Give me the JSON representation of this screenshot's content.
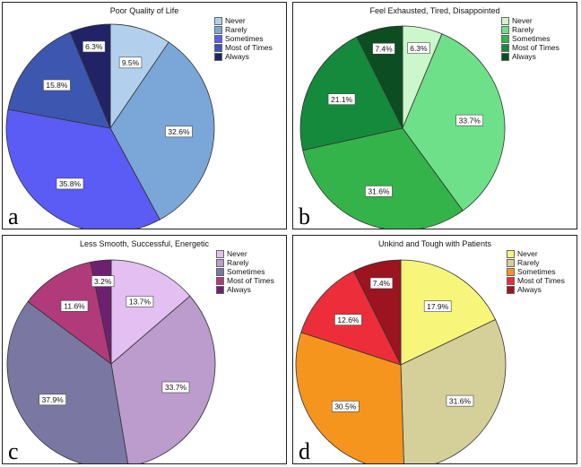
{
  "chart_data": [
    {
      "type": "pie",
      "title": "Poor Quality of Life",
      "panel_letter": "a",
      "categories": [
        "Never",
        "Rarely",
        "Sometimes",
        "Most of Times",
        "Always"
      ],
      "values": [
        9.5,
        32.6,
        35.8,
        15.8,
        6.3
      ],
      "labels": [
        "9.5%",
        "32.6%",
        "35.8%",
        "15.8%",
        "6.3%"
      ],
      "colors": [
        "#b3cfee",
        "#7ba7d8",
        "#5b5bf5",
        "#3d56b0",
        "#222266"
      ],
      "legend_position": "top-right"
    },
    {
      "type": "pie",
      "title": "Feel Exhausted, Tired, Disappointed",
      "panel_letter": "b",
      "categories": [
        "Never",
        "Rarely",
        "Sometimes",
        "Most of Times",
        "Always"
      ],
      "values": [
        6.3,
        33.7,
        31.6,
        21.1,
        7.4
      ],
      "labels": [
        "6.3%",
        "33.7%",
        "31.6%",
        "21.1%",
        "7.4%"
      ],
      "colors": [
        "#ccf7cc",
        "#6ee08a",
        "#33b34a",
        "#158a3c",
        "#0d4d22"
      ],
      "legend_position": "top-right"
    },
    {
      "type": "pie",
      "title": "Less Smooth, Successful, Energetic",
      "panel_letter": "c",
      "categories": [
        "Never",
        "Rarely",
        "Sometimes",
        "Most of Times",
        "Always"
      ],
      "values": [
        13.7,
        33.7,
        37.9,
        11.6,
        3.2
      ],
      "labels": [
        "13.7%",
        "33.7%",
        "37.9%",
        "11.6%",
        "3.2%"
      ],
      "colors": [
        "#e3bff2",
        "#bb9ccc",
        "#7a77a2",
        "#b13a7a",
        "#6e2070"
      ],
      "legend_position": "top-right"
    },
    {
      "type": "pie",
      "title": "Unkind and Tough with Patients",
      "panel_letter": "d",
      "categories": [
        "Never",
        "Rarely",
        "Sometimes",
        "Most of Times",
        "Always"
      ],
      "values": [
        17.9,
        31.6,
        30.5,
        12.6,
        7.4
      ],
      "labels": [
        "17.9%",
        "31.6%",
        "30.5%",
        "12.6%",
        "7.4%"
      ],
      "colors": [
        "#f8f67a",
        "#d5cf9a",
        "#f5951e",
        "#ee2d3a",
        "#9b1420"
      ],
      "legend_position": "top-right"
    }
  ]
}
